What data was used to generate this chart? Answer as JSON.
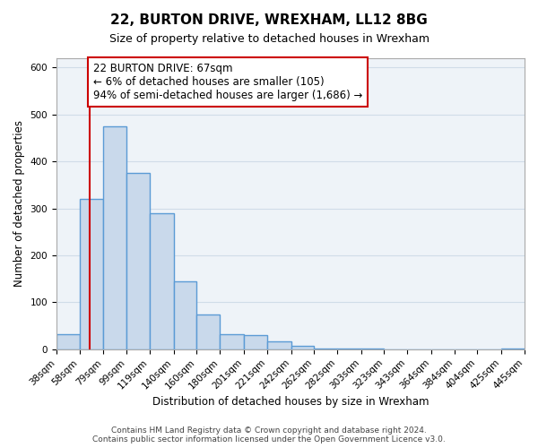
{
  "title": "22, BURTON DRIVE, WREXHAM, LL12 8BG",
  "subtitle": "Size of property relative to detached houses in Wrexham",
  "xlabel": "Distribution of detached houses by size in Wrexham",
  "ylabel": "Number of detached properties",
  "bar_edges": [
    38,
    58,
    79,
    99,
    119,
    140,
    160,
    180,
    201,
    221,
    242,
    262,
    282,
    303,
    323,
    343,
    364,
    384,
    404,
    425,
    445
  ],
  "bar_heights": [
    33,
    320,
    475,
    375,
    290,
    145,
    75,
    32,
    30,
    17,
    7,
    2,
    1,
    1,
    0,
    0,
    0,
    0,
    0,
    2
  ],
  "bar_color": "#c9d9eb",
  "bar_edge_color": "#5b9bd5",
  "bar_linewidth": 1.0,
  "grid_color": "#d0dce8",
  "background_color": "#eef3f8",
  "property_line_x": 67,
  "property_line_color": "#cc0000",
  "annotation_text": "22 BURTON DRIVE: 67sqm\n← 6% of detached houses are smaller (105)\n94% of semi-detached houses are larger (1,686) →",
  "annotation_box_color": "#ffffff",
  "annotation_box_edge": "#cc0000",
  "ylim": [
    0,
    620
  ],
  "tick_labels": [
    "38sqm",
    "58sqm",
    "79sqm",
    "99sqm",
    "119sqm",
    "140sqm",
    "160sqm",
    "180sqm",
    "201sqm",
    "221sqm",
    "242sqm",
    "262sqm",
    "282sqm",
    "303sqm",
    "323sqm",
    "343sqm",
    "364sqm",
    "384sqm",
    "404sqm",
    "425sqm",
    "445sqm"
  ],
  "footer_text": "Contains HM Land Registry data © Crown copyright and database right 2024.\nContains public sector information licensed under the Open Government Licence v3.0.",
  "title_fontsize": 11,
  "subtitle_fontsize": 9,
  "axis_label_fontsize": 8.5,
  "tick_fontsize": 7.5,
  "annotation_fontsize": 8.5,
  "footer_fontsize": 6.5
}
